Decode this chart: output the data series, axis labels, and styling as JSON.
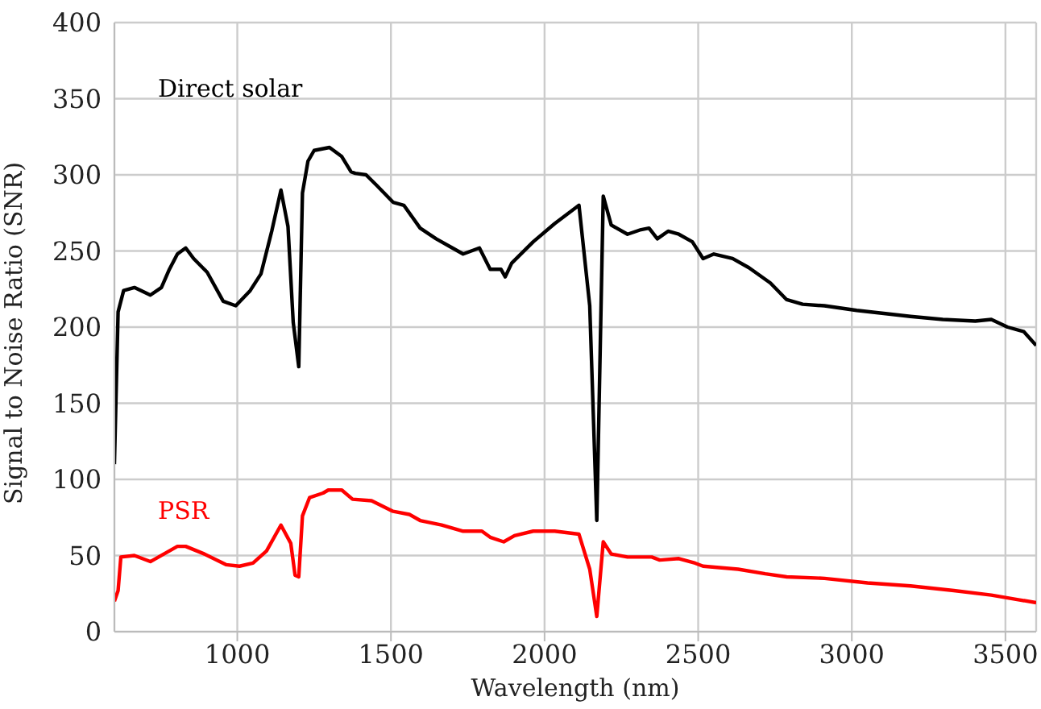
{
  "chart_data": {
    "type": "line",
    "xlabel": "Wavelength (nm)",
    "ylabel": "Signal to Noise Ratio (SNR)",
    "xlim": [
      600,
      3600
    ],
    "xticks": [
      1000,
      1500,
      2000,
      2500,
      3000,
      3500
    ],
    "ylim": [
      0,
      400
    ],
    "yticks": [
      0,
      50,
      100,
      150,
      200,
      250,
      300,
      350,
      400
    ],
    "grid": true,
    "legend": false,
    "marker": "none",
    "line_style": "solid",
    "series": [
      {
        "name": "Direct solar",
        "color": "#000000",
        "x": [
          600,
          612,
          630,
          665,
          717,
          753,
          779,
          805,
          832,
          858,
          902,
          954,
          995,
          1042,
          1077,
          1112,
          1142,
          1165,
          1182,
          1200,
          1212,
          1230,
          1250,
          1300,
          1340,
          1370,
          1384,
          1419,
          1454,
          1507,
          1542,
          1595,
          1647,
          1700,
          1735,
          1788,
          1823,
          1858,
          1872,
          1893,
          1963,
          2033,
          2112,
          2147,
          2170,
          2191,
          2217,
          2270,
          2314,
          2340,
          2367,
          2402,
          2437,
          2481,
          2516,
          2551,
          2612,
          2665,
          2735,
          2788,
          2840,
          2911,
          3016,
          3104,
          3191,
          3296,
          3402,
          3454,
          3507,
          3560,
          3600
        ],
        "values": [
          110,
          210,
          224,
          226,
          221,
          226,
          238,
          248,
          252,
          245,
          236,
          217,
          214,
          224,
          235,
          263,
          290,
          266,
          203,
          174,
          288,
          309,
          316,
          318,
          312,
          302,
          301,
          300,
          293,
          282,
          280,
          265,
          258,
          252,
          248,
          252,
          238,
          238,
          233,
          242,
          256,
          268,
          280,
          214,
          73,
          286,
          267,
          261,
          264,
          265,
          258,
          263,
          261,
          256,
          245,
          248,
          245,
          239,
          229,
          218,
          215,
          214,
          211,
          209,
          207,
          205,
          204,
          205,
          200,
          197,
          188
        ]
      },
      {
        "name": "PSR",
        "color": "#ff0000",
        "x": [
          600,
          612,
          621,
          665,
          717,
          761,
          805,
          832,
          893,
          963,
          1007,
          1051,
          1095,
          1142,
          1174,
          1188,
          1200,
          1212,
          1235,
          1279,
          1296,
          1340,
          1375,
          1437,
          1507,
          1560,
          1595,
          1665,
          1735,
          1796,
          1823,
          1867,
          1902,
          1963,
          2033,
          2112,
          2147,
          2170,
          2191,
          2217,
          2270,
          2349,
          2375,
          2437,
          2490,
          2516,
          2630,
          2718,
          2788,
          2911,
          3051,
          3191,
          3332,
          3454,
          3542,
          3600
        ],
        "values": [
          20,
          27,
          49,
          50,
          46,
          51,
          56,
          56,
          51,
          44,
          43,
          45,
          53,
          70,
          58,
          37,
          36,
          76,
          88,
          91,
          93,
          93,
          87,
          86,
          79,
          77,
          73,
          70,
          66,
          66,
          62,
          59,
          63,
          66,
          66,
          64,
          41,
          10,
          59,
          51,
          49,
          49,
          47,
          48,
          45,
          43,
          41,
          38,
          36,
          35,
          32,
          30,
          27,
          24,
          21,
          19
        ]
      }
    ]
  }
}
